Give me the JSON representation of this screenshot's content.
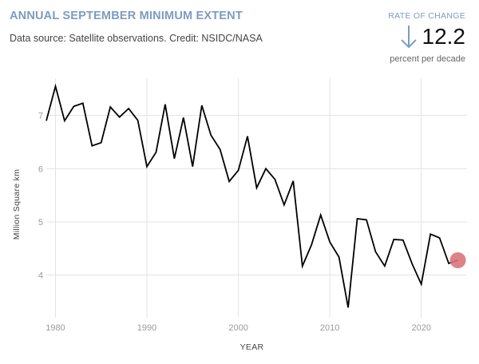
{
  "header": {
    "title": "ANNUAL SEPTEMBER MINIMUM EXTENT",
    "subtitle": "Data source: Satellite observations. Credit: NSIDC/NASA"
  },
  "rate": {
    "label": "RATE OF CHANGE",
    "value": "12.2",
    "unit": "percent per decade",
    "arrow_icon": "arrow-down-icon"
  },
  "colors": {
    "accent": "#7b9cc0",
    "line": "#000000",
    "highlight": "#d9757a"
  },
  "chart_data": {
    "type": "line",
    "title": "ANNUAL SEPTEMBER MINIMUM EXTENT",
    "xlabel": "YEAR",
    "ylabel": "Million Square km",
    "xlim": [
      1979,
      2025
    ],
    "ylim": [
      3.2,
      7.7
    ],
    "x_ticks": [
      1980,
      1990,
      2000,
      2010,
      2020
    ],
    "y_ticks": [
      4,
      5,
      6,
      7
    ],
    "grid": true,
    "highlight_last_point": true,
    "x": [
      1979,
      1980,
      1981,
      1982,
      1983,
      1984,
      1985,
      1986,
      1987,
      1988,
      1989,
      1990,
      1991,
      1992,
      1993,
      1994,
      1995,
      1996,
      1997,
      1998,
      1999,
      2000,
      2001,
      2002,
      2003,
      2004,
      2005,
      2006,
      2007,
      2008,
      2009,
      2010,
      2011,
      2012,
      2013,
      2014,
      2015,
      2016,
      2017,
      2018,
      2019,
      2020,
      2021,
      2022,
      2023,
      2024
    ],
    "values": [
      6.9,
      7.55,
      6.9,
      7.17,
      7.23,
      6.43,
      6.49,
      7.16,
      6.97,
      7.13,
      6.91,
      6.04,
      6.31,
      7.21,
      6.19,
      6.96,
      6.04,
      7.19,
      6.63,
      6.36,
      5.76,
      5.97,
      6.61,
      5.64,
      6.0,
      5.8,
      5.32,
      5.77,
      4.17,
      4.57,
      5.13,
      4.62,
      4.34,
      3.39,
      5.06,
      5.04,
      4.44,
      4.17,
      4.67,
      4.66,
      4.21,
      3.83,
      4.77,
      4.7,
      4.22,
      4.28
    ]
  }
}
